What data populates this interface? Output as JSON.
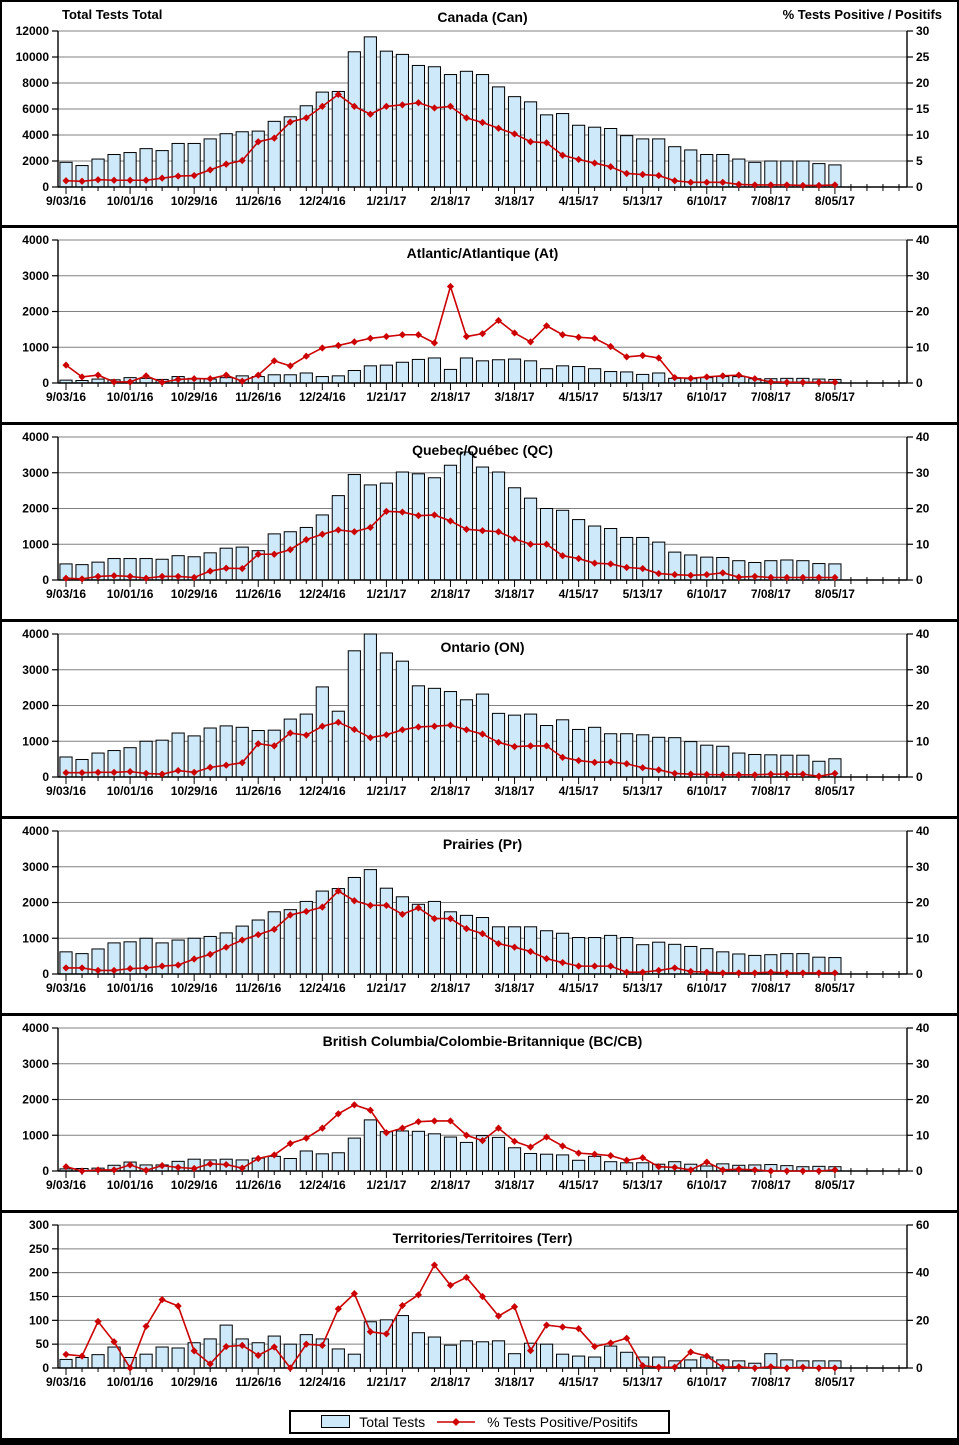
{
  "header": {
    "left_axis_title": "Total Tests Total",
    "right_axis_title": "% Tests Positive / Positifs"
  },
  "legend": {
    "bar_label": "Total Tests",
    "line_label": "% Tests Positive/Positifs"
  },
  "colors": {
    "bar_fill": "#cde9fa",
    "bar_stroke": "#000000",
    "line": "#cc0000",
    "grid": "#808080",
    "axis": "#000000"
  },
  "x_axis": {
    "labels": [
      "9/03/16",
      "10/01/16",
      "10/29/16",
      "11/26/16",
      "12/24/16",
      "1/21/17",
      "2/18/17",
      "3/18/17",
      "4/15/17",
      "5/13/17",
      "6/10/17",
      "7/08/17",
      "8/05/17"
    ],
    "weeks_between_labels": 4,
    "data_weeks": 49,
    "trailing_empty_weeks": 4,
    "total_weeks": 53
  },
  "chart_data": [
    {
      "id": "canada",
      "type": "bar",
      "title": "Canada (Can)",
      "left_axis": {
        "label": "Total Tests Total",
        "min": 0,
        "max": 12000,
        "step": 2000
      },
      "right_axis": {
        "label": "% Tests Positive / Positifs",
        "min": 0,
        "max": 30,
        "step": 5
      },
      "series": [
        {
          "name": "Total Tests",
          "type": "bar",
          "axis": "left",
          "values": [
            1900,
            1650,
            2150,
            2500,
            2650,
            2950,
            2800,
            3350,
            3350,
            3700,
            4100,
            4250,
            4300,
            5050,
            5400,
            6250,
            7300,
            7350,
            10400,
            11550,
            10450,
            10200,
            9350,
            9250,
            8650,
            8900,
            8650,
            7700,
            6950,
            6550,
            5550,
            5650,
            4750,
            4600,
            4500,
            3950,
            3700,
            3700,
            3100,
            2850,
            2500,
            2500,
            2150,
            1900,
            2000,
            2000,
            2000,
            1800,
            1700
          ]
        },
        {
          "name": "% Tests Positive/Positifs",
          "type": "line",
          "axis": "right",
          "values": [
            1.2,
            1.1,
            1.4,
            1.3,
            1.3,
            1.3,
            1.7,
            2.1,
            2.2,
            3.3,
            4.4,
            5.1,
            8.7,
            9.4,
            12.5,
            13.3,
            15.5,
            17.8,
            15.5,
            14.0,
            15.5,
            15.8,
            16.2,
            15.2,
            15.5,
            13.3,
            12.4,
            11.3,
            10.2,
            8.7,
            8.5,
            6.1,
            5.3,
            4.6,
            3.9,
            2.6,
            2.4,
            2.2,
            1.2,
            0.9,
            0.9,
            0.9,
            0.5,
            0.4,
            0.4,
            0.4,
            0.3,
            0.3,
            0.4
          ]
        }
      ]
    },
    {
      "id": "atlantic",
      "type": "bar",
      "title": "Atlantic/Atlantique (At)",
      "left_axis": {
        "min": 0,
        "max": 4000,
        "step": 1000
      },
      "right_axis": {
        "min": 0,
        "max": 40,
        "step": 10
      },
      "series": [
        {
          "name": "Total Tests",
          "type": "bar",
          "axis": "left",
          "values": [
            80,
            70,
            110,
            90,
            150,
            130,
            100,
            180,
            130,
            110,
            150,
            200,
            180,
            230,
            230,
            280,
            180,
            200,
            350,
            480,
            500,
            580,
            660,
            700,
            380,
            700,
            620,
            650,
            670,
            620,
            400,
            480,
            460,
            400,
            320,
            310,
            240,
            280,
            130,
            120,
            150,
            180,
            180,
            120,
            120,
            130,
            130,
            110,
            100
          ]
        },
        {
          "name": "% Tests Positive/Positifs",
          "type": "line",
          "axis": "right",
          "values": [
            5.0,
            1.7,
            2.2,
            0.3,
            0.3,
            2.0,
            0.2,
            1.0,
            1.2,
            1.2,
            2.2,
            0.5,
            2.2,
            6.2,
            4.8,
            7.5,
            9.8,
            10.5,
            11.5,
            12.5,
            13.0,
            13.5,
            13.5,
            11.2,
            27.0,
            13.0,
            13.8,
            17.5,
            14.0,
            11.5,
            16.0,
            13.5,
            12.8,
            12.5,
            10.2,
            7.3,
            7.7,
            7.0,
            1.5,
            1.3,
            1.7,
            2.0,
            2.2,
            1.2,
            0.3,
            0.2,
            0.2,
            0.2,
            0.2
          ]
        }
      ]
    },
    {
      "id": "quebec",
      "type": "bar",
      "title": "Quebec/Québec (QC)",
      "left_axis": {
        "min": 0,
        "max": 4000,
        "step": 1000
      },
      "right_axis": {
        "min": 0,
        "max": 40,
        "step": 10
      },
      "series": [
        {
          "name": "Total Tests",
          "type": "bar",
          "axis": "left",
          "values": [
            450,
            430,
            500,
            600,
            600,
            600,
            580,
            680,
            650,
            760,
            890,
            920,
            820,
            1290,
            1350,
            1470,
            1820,
            2360,
            2950,
            2660,
            2710,
            3020,
            2970,
            2860,
            3210,
            3580,
            3160,
            3020,
            2580,
            2290,
            2000,
            1950,
            1690,
            1510,
            1440,
            1190,
            1190,
            1060,
            780,
            700,
            640,
            630,
            540,
            490,
            540,
            560,
            540,
            460,
            450
          ]
        },
        {
          "name": "% Tests Positive/Positifs",
          "type": "line",
          "axis": "right",
          "values": [
            0.5,
            0.3,
            1.0,
            1.2,
            1.0,
            0.5,
            1.0,
            1.0,
            0.7,
            2.5,
            3.3,
            3.2,
            7.2,
            7.2,
            8.5,
            11.3,
            12.8,
            14.0,
            13.5,
            14.7,
            19.2,
            19.0,
            18.0,
            18.2,
            16.5,
            14.2,
            13.8,
            13.5,
            11.5,
            10.0,
            10.0,
            6.8,
            6.0,
            4.7,
            4.5,
            3.5,
            3.2,
            1.8,
            1.5,
            1.3,
            1.5,
            2.0,
            0.8,
            1.0,
            0.7,
            0.7,
            0.7,
            0.7,
            0.7
          ]
        }
      ]
    },
    {
      "id": "ontario",
      "type": "bar",
      "title": "Ontario (ON)",
      "left_axis": {
        "min": 0,
        "max": 4000,
        "step": 1000
      },
      "right_axis": {
        "min": 0,
        "max": 40,
        "step": 10
      },
      "series": [
        {
          "name": "Total Tests",
          "type": "bar",
          "axis": "left",
          "values": [
            560,
            490,
            670,
            740,
            820,
            1000,
            1030,
            1230,
            1150,
            1370,
            1430,
            1390,
            1300,
            1310,
            1620,
            1760,
            2520,
            1840,
            3530,
            4000,
            3470,
            3240,
            2550,
            2480,
            2390,
            2160,
            2320,
            1780,
            1730,
            1760,
            1440,
            1600,
            1330,
            1390,
            1210,
            1210,
            1180,
            1110,
            1100,
            990,
            890,
            860,
            670,
            630,
            620,
            610,
            610,
            440,
            510
          ]
        },
        {
          "name": "% Tests Positive/Positifs",
          "type": "line",
          "axis": "right",
          "values": [
            1.2,
            1.2,
            1.3,
            1.3,
            1.5,
            1.0,
            0.8,
            1.8,
            1.3,
            2.7,
            3.3,
            4.0,
            9.3,
            8.7,
            12.3,
            11.7,
            14.2,
            15.3,
            13.3,
            11.0,
            11.8,
            13.2,
            14.0,
            14.2,
            14.5,
            13.2,
            12.0,
            9.7,
            8.5,
            8.7,
            8.7,
            5.5,
            4.6,
            4.1,
            4.2,
            3.7,
            2.6,
            2.0,
            1.0,
            0.8,
            0.7,
            0.6,
            0.6,
            0.6,
            0.8,
            0.8,
            0.8,
            0.2,
            1.0
          ]
        }
      ]
    },
    {
      "id": "prairies",
      "type": "bar",
      "title": "Prairies (Pr)",
      "left_axis": {
        "min": 0,
        "max": 4000,
        "step": 1000
      },
      "right_axis": {
        "min": 0,
        "max": 40,
        "step": 10
      },
      "series": [
        {
          "name": "Total Tests",
          "type": "bar",
          "axis": "left",
          "values": [
            620,
            570,
            700,
            870,
            900,
            1000,
            870,
            950,
            1000,
            1050,
            1150,
            1340,
            1510,
            1740,
            1800,
            2030,
            2320,
            2390,
            2700,
            2920,
            2400,
            2160,
            1950,
            2030,
            1740,
            1640,
            1580,
            1320,
            1320,
            1320,
            1210,
            1140,
            1020,
            1020,
            1080,
            1020,
            820,
            890,
            830,
            770,
            710,
            620,
            560,
            520,
            540,
            570,
            570,
            470,
            460
          ]
        },
        {
          "name": "% Tests Positive/Positifs",
          "type": "line",
          "axis": "right",
          "values": [
            1.7,
            1.7,
            1.0,
            1.0,
            1.5,
            1.7,
            2.2,
            2.5,
            4.2,
            5.5,
            7.5,
            9.5,
            11.0,
            12.5,
            16.5,
            17.5,
            18.7,
            23.2,
            20.5,
            19.2,
            19.2,
            16.7,
            18.5,
            15.5,
            15.5,
            12.7,
            11.3,
            8.5,
            7.5,
            6.3,
            4.3,
            3.2,
            2.2,
            2.2,
            2.2,
            0.5,
            0.5,
            1.0,
            1.7,
            0.7,
            0.5,
            0.3,
            0.3,
            0.3,
            0.5,
            0.3,
            0.3,
            0.3,
            0.3
          ]
        }
      ]
    },
    {
      "id": "british-columbia",
      "type": "bar",
      "title": "British Columbia/Colombie-Britannique (BC/CB)",
      "left_axis": {
        "min": 0,
        "max": 4000,
        "step": 1000
      },
      "right_axis": {
        "min": 0,
        "max": 40,
        "step": 10
      },
      "series": [
        {
          "name": "Total Tests",
          "type": "bar",
          "axis": "left",
          "values": [
            60,
            70,
            80,
            160,
            250,
            170,
            170,
            270,
            330,
            310,
            330,
            310,
            360,
            410,
            350,
            560,
            480,
            510,
            920,
            1430,
            1100,
            1120,
            1110,
            1040,
            950,
            800,
            990,
            940,
            650,
            490,
            470,
            450,
            300,
            410,
            260,
            230,
            230,
            190,
            260,
            190,
            140,
            200,
            160,
            170,
            180,
            150,
            120,
            130,
            120
          ]
        },
        {
          "name": "% Tests Positive/Positifs",
          "type": "line",
          "axis": "right",
          "values": [
            1.2,
            0.0,
            0.3,
            0.3,
            1.7,
            0.2,
            1.5,
            1.0,
            0.7,
            2.0,
            1.8,
            0.8,
            3.5,
            4.5,
            7.7,
            9.2,
            12.0,
            16.0,
            18.5,
            17.0,
            10.7,
            12.0,
            13.8,
            14.0,
            14.0,
            10.0,
            8.5,
            12.0,
            8.3,
            6.7,
            9.5,
            7.0,
            5.0,
            4.7,
            4.3,
            3.0,
            3.7,
            1.2,
            1.0,
            0.3,
            2.5,
            0.3,
            0.5,
            0.3,
            0.0,
            0.0,
            0.0,
            0.0,
            0.3
          ]
        }
      ]
    },
    {
      "id": "territories",
      "type": "bar",
      "title": "Territories/Territoires (Terr)",
      "left_axis": {
        "min": 0,
        "max": 300,
        "step": 50
      },
      "right_axis": {
        "min": 0,
        "max": 60,
        "step": 20
      },
      "series": [
        {
          "name": "Total Tests",
          "type": "bar",
          "axis": "left",
          "values": [
            18,
            22,
            28,
            44,
            22,
            29,
            44,
            42,
            53,
            61,
            90,
            61,
            53,
            67,
            50,
            70,
            61,
            40,
            29,
            97,
            101,
            110,
            74,
            65,
            48,
            57,
            55,
            57,
            30,
            52,
            50,
            29,
            25,
            23,
            46,
            33,
            23,
            23,
            15,
            17,
            23,
            17,
            15,
            10,
            30,
            17,
            15,
            15,
            15
          ]
        },
        {
          "name": "% Tests Positive/Positifs",
          "type": "line",
          "axis": "right",
          "values": [
            5.7,
            5.0,
            19.5,
            11.0,
            0.0,
            17.5,
            28.7,
            26.0,
            7.2,
            1.7,
            9.0,
            9.5,
            5.3,
            8.8,
            0.0,
            10.0,
            9.5,
            24.8,
            31.2,
            15.2,
            14.3,
            26.2,
            30.7,
            43.2,
            34.7,
            38.0,
            30.0,
            21.8,
            25.7,
            7.3,
            18.0,
            17.2,
            16.5,
            9.0,
            10.5,
            12.5,
            1.0,
            0.3,
            0.3,
            6.7,
            5.0,
            0.3,
            0.5,
            0.0,
            0.5,
            0.0,
            0.3,
            0.0,
            0.0
          ]
        }
      ]
    }
  ]
}
